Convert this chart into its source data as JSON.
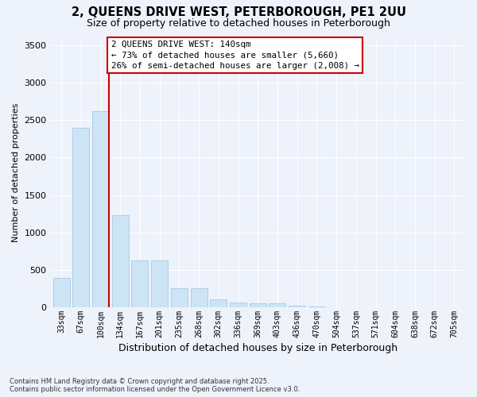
{
  "title_line1": "2, QUEENS DRIVE WEST, PETERBOROUGH, PE1 2UU",
  "title_line2": "Size of property relative to detached houses in Peterborough",
  "xlabel": "Distribution of detached houses by size in Peterborough",
  "ylabel": "Number of detached properties",
  "footnote": "Contains HM Land Registry data © Crown copyright and database right 2025.\nContains public sector information licensed under the Open Government Licence v3.0.",
  "categories": [
    "33sqm",
    "67sqm",
    "100sqm",
    "134sqm",
    "167sqm",
    "201sqm",
    "235sqm",
    "268sqm",
    "302sqm",
    "336sqm",
    "369sqm",
    "403sqm",
    "436sqm",
    "470sqm",
    "504sqm",
    "537sqm",
    "571sqm",
    "604sqm",
    "638sqm",
    "672sqm",
    "705sqm"
  ],
  "values": [
    390,
    2400,
    2620,
    1230,
    630,
    630,
    250,
    250,
    110,
    65,
    55,
    50,
    20,
    10,
    5,
    3,
    2,
    1,
    0,
    0,
    0
  ],
  "bar_color": "#cde4f5",
  "bar_edge_color": "#a8c8e8",
  "vline_color": "#cc0000",
  "annotation_text": "2 QUEENS DRIVE WEST: 140sqm\n← 73% of detached houses are smaller (5,660)\n26% of semi-detached houses are larger (2,008) →",
  "annotation_box_edgecolor": "#cc0000",
  "ylim_max": 3600,
  "yticks": [
    0,
    500,
    1000,
    1500,
    2000,
    2500,
    3000,
    3500
  ],
  "bg_color": "#eef2fb",
  "grid_color": "#ffffff",
  "title_fontsize": 10.5,
  "subtitle_fontsize": 9,
  "ylabel_fontsize": 8,
  "xlabel_fontsize": 9,
  "annot_fontsize": 7.8
}
